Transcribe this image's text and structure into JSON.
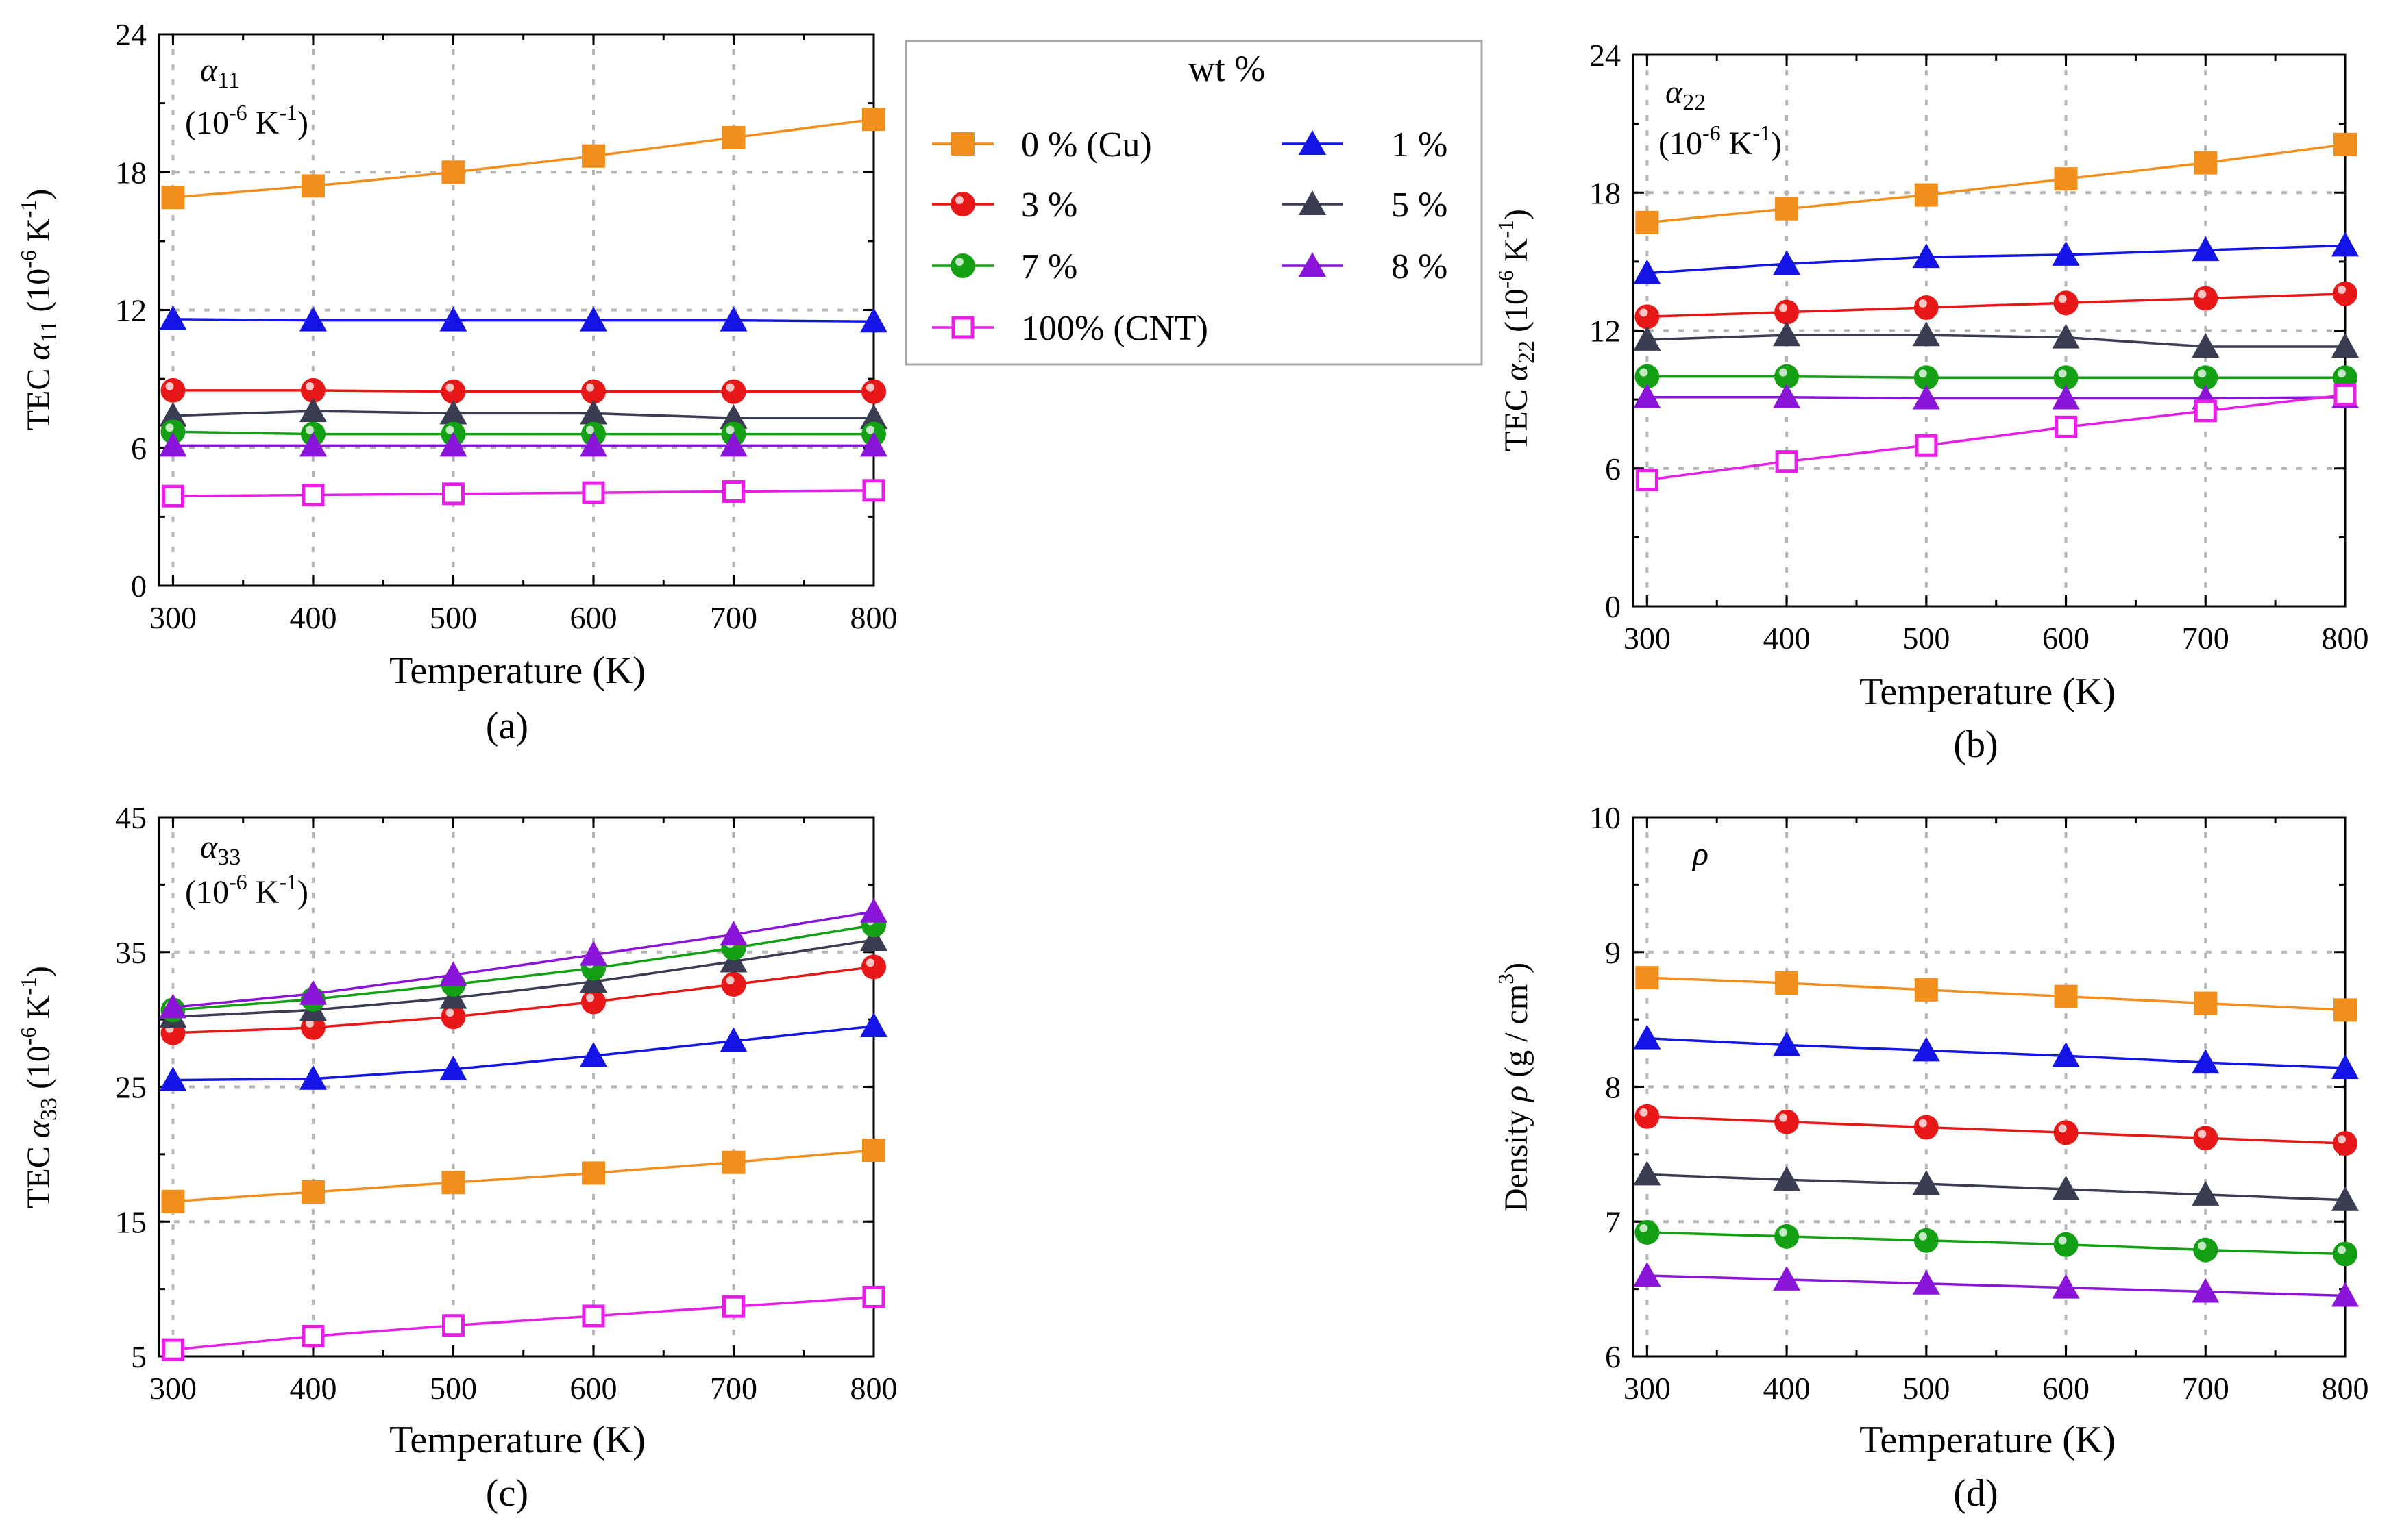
{
  "chart_data": [
    {
      "id": "a",
      "type": "line",
      "panel_label": "(a)",
      "annotation": {
        "symbol": "α",
        "sub": "11",
        "unit": "(10",
        "unit_exp": "-6",
        "unit_rest": " K",
        "unit_exp2": "-1",
        "unit_close": ")"
      },
      "xlabel": "Temperature (K)",
      "ylabel": {
        "prefix": "TEC ",
        "symbol": "α",
        "sub": "11",
        "unit": " (10",
        "exp": "-6",
        "unit2": " K",
        "exp2": "-1",
        "close": ")"
      },
      "xlim": [
        290,
        800
      ],
      "ylim": [
        0,
        24
      ],
      "xticks": [
        300,
        400,
        500,
        600,
        700,
        800
      ],
      "yticks": [
        0,
        6,
        12,
        18,
        24
      ],
      "grid": true,
      "x": [
        300,
        400,
        500,
        600,
        700,
        800
      ],
      "series": [
        {
          "name": "0 % (Cu)",
          "marker": "square",
          "color": "#f28e1c",
          "values": [
            16.9,
            17.4,
            18.0,
            18.7,
            19.5,
            20.3
          ]
        },
        {
          "name": "1 %",
          "marker": "triangle",
          "color": "#1414e6",
          "values": [
            11.6,
            11.55,
            11.55,
            11.55,
            11.55,
            11.5
          ]
        },
        {
          "name": "3 %",
          "marker": "circle",
          "color": "#e81818",
          "values": [
            8.5,
            8.5,
            8.45,
            8.45,
            8.45,
            8.45
          ]
        },
        {
          "name": "5 %",
          "marker": "triangle",
          "color": "#3a3c52",
          "values": [
            7.4,
            7.6,
            7.5,
            7.5,
            7.3,
            7.3
          ]
        },
        {
          "name": "7 %",
          "marker": "circle",
          "color": "#14a014",
          "values": [
            6.7,
            6.6,
            6.6,
            6.6,
            6.6,
            6.6
          ]
        },
        {
          "name": "8 %",
          "marker": "triangle",
          "color": "#8a14d8",
          "values": [
            6.1,
            6.1,
            6.1,
            6.1,
            6.1,
            6.1
          ]
        },
        {
          "name": "100% (CNT)",
          "marker": "square-open",
          "color": "#e61ee6",
          "values": [
            3.9,
            3.95,
            4.0,
            4.05,
            4.1,
            4.15
          ]
        }
      ]
    },
    {
      "id": "b",
      "type": "line",
      "panel_label": "(b)",
      "annotation": {
        "symbol": "α",
        "sub": "22",
        "unit": "(10",
        "unit_exp": "-6",
        "unit_rest": " K",
        "unit_exp2": "-1",
        "unit_close": ")"
      },
      "xlabel": "Temperature (K)",
      "ylabel": {
        "prefix": "TEC ",
        "symbol": "α",
        "sub": "22",
        "unit": " (10",
        "exp": "-6",
        "unit2": " K",
        "exp2": "-1",
        "close": ")"
      },
      "xlim": [
        290,
        800
      ],
      "ylim": [
        0,
        24
      ],
      "xticks": [
        300,
        400,
        500,
        600,
        700,
        800
      ],
      "yticks": [
        0,
        6,
        12,
        18,
        24
      ],
      "grid": true,
      "x": [
        300,
        400,
        500,
        600,
        700,
        800
      ],
      "series": [
        {
          "name": "0 % (Cu)",
          "marker": "square",
          "color": "#f28e1c",
          "values": [
            16.7,
            17.3,
            17.9,
            18.6,
            19.3,
            20.1
          ]
        },
        {
          "name": "1 %",
          "marker": "triangle",
          "color": "#1414e6",
          "values": [
            14.5,
            14.9,
            15.2,
            15.3,
            15.5,
            15.7
          ]
        },
        {
          "name": "3 %",
          "marker": "circle",
          "color": "#e81818",
          "values": [
            12.6,
            12.8,
            13.0,
            13.2,
            13.4,
            13.6
          ]
        },
        {
          "name": "5 %",
          "marker": "triangle",
          "color": "#3a3c52",
          "values": [
            11.6,
            11.8,
            11.8,
            11.7,
            11.3,
            11.3
          ]
        },
        {
          "name": "7 %",
          "marker": "circle",
          "color": "#14a014",
          "values": [
            10.0,
            10.0,
            9.95,
            9.95,
            9.95,
            9.95
          ]
        },
        {
          "name": "8 %",
          "marker": "triangle",
          "color": "#8a14d8",
          "values": [
            9.1,
            9.1,
            9.05,
            9.05,
            9.05,
            9.1
          ]
        },
        {
          "name": "100% (CNT)",
          "marker": "square-open",
          "color": "#e61ee6",
          "values": [
            5.5,
            6.3,
            7.0,
            7.8,
            8.5,
            9.2
          ]
        }
      ]
    },
    {
      "id": "c",
      "type": "line",
      "panel_label": "(c)",
      "annotation": {
        "symbol": "α",
        "sub": "33",
        "unit": "(10",
        "unit_exp": "-6",
        "unit_rest": " K",
        "unit_exp2": "-1",
        "unit_close": ")"
      },
      "xlabel": "Temperature (K)",
      "ylabel": {
        "prefix": "TEC ",
        "symbol": "α",
        "sub": "33",
        "unit": " (10",
        "exp": "-6",
        "unit2": " K",
        "exp2": "-1",
        "close": ")"
      },
      "xlim": [
        290,
        800
      ],
      "ylim": [
        5,
        45
      ],
      "xticks": [
        300,
        400,
        500,
        600,
        700,
        800
      ],
      "yticks": [
        5,
        15,
        25,
        35,
        45
      ],
      "grid": true,
      "x": [
        300,
        400,
        500,
        600,
        700,
        800
      ],
      "series": [
        {
          "name": "0 % (Cu)",
          "marker": "square",
          "color": "#f28e1c",
          "values": [
            16.5,
            17.2,
            17.9,
            18.6,
            19.4,
            20.3
          ]
        },
        {
          "name": "1 %",
          "marker": "triangle",
          "color": "#1414e6",
          "values": [
            25.5,
            25.6,
            26.3,
            27.3,
            28.4,
            29.5
          ]
        },
        {
          "name": "3 %",
          "marker": "circle",
          "color": "#e81818",
          "values": [
            29.0,
            29.4,
            30.2,
            31.3,
            32.6,
            33.9
          ]
        },
        {
          "name": "5 %",
          "marker": "triangle",
          "color": "#3a3c52",
          "values": [
            30.2,
            30.7,
            31.6,
            32.8,
            34.3,
            35.9
          ]
        },
        {
          "name": "7 %",
          "marker": "circle",
          "color": "#14a014",
          "values": [
            30.7,
            31.5,
            32.6,
            33.8,
            35.3,
            37.0
          ]
        },
        {
          "name": "8 %",
          "marker": "triangle",
          "color": "#8a14d8",
          "values": [
            30.9,
            31.9,
            33.3,
            34.8,
            36.3,
            38.0
          ]
        },
        {
          "name": "100% (CNT)",
          "marker": "square-open",
          "color": "#e61ee6",
          "values": [
            5.5,
            6.5,
            7.3,
            8.0,
            8.7,
            9.4
          ]
        }
      ]
    },
    {
      "id": "d",
      "type": "line",
      "panel_label": "(d)",
      "annotation": {
        "symbol": "ρ"
      },
      "xlabel": "Temperature (K)",
      "ylabel": {
        "prefix": "Density ",
        "symbol": "ρ",
        "unit": " (g / cm",
        "exp": "3",
        "close": ")"
      },
      "xlim": [
        290,
        800
      ],
      "ylim": [
        6,
        10
      ],
      "xticks": [
        300,
        400,
        500,
        600,
        700,
        800
      ],
      "yticks": [
        6,
        7,
        8,
        9,
        10
      ],
      "grid": true,
      "x": [
        300,
        400,
        500,
        600,
        700,
        800
      ],
      "series": [
        {
          "name": "0 % (Cu)",
          "marker": "square",
          "color": "#f28e1c",
          "values": [
            8.81,
            8.77,
            8.72,
            8.67,
            8.62,
            8.57
          ]
        },
        {
          "name": "1 %",
          "marker": "triangle",
          "color": "#1414e6",
          "values": [
            8.36,
            8.31,
            8.27,
            8.23,
            8.18,
            8.14
          ]
        },
        {
          "name": "3 %",
          "marker": "circle",
          "color": "#e81818",
          "values": [
            7.78,
            7.74,
            7.7,
            7.66,
            7.62,
            7.58
          ]
        },
        {
          "name": "5 %",
          "marker": "triangle",
          "color": "#3a3c52",
          "values": [
            7.35,
            7.31,
            7.28,
            7.24,
            7.2,
            7.16
          ]
        },
        {
          "name": "7 %",
          "marker": "circle",
          "color": "#14a014",
          "values": [
            6.92,
            6.89,
            6.86,
            6.83,
            6.79,
            6.76
          ]
        },
        {
          "name": "8 %",
          "marker": "triangle",
          "color": "#8a14d8",
          "values": [
            6.6,
            6.57,
            6.54,
            6.51,
            6.48,
            6.45
          ]
        }
      ]
    }
  ],
  "legend": {
    "title": "wt %",
    "entries": [
      {
        "label": "0 % (Cu)",
        "marker": "square",
        "color": "#f28e1c"
      },
      {
        "label": "1 %",
        "marker": "triangle",
        "color": "#1414e6"
      },
      {
        "label": "3 %",
        "marker": "circle",
        "color": "#e81818"
      },
      {
        "label": "5 %",
        "marker": "triangle",
        "color": "#3a3c52"
      },
      {
        "label": "7 %",
        "marker": "circle",
        "color": "#14a014"
      },
      {
        "label": "8 %",
        "marker": "triangle",
        "color": "#8a14d8"
      },
      {
        "label": "100% (CNT)",
        "marker": "square-open",
        "color": "#e61ee6"
      }
    ]
  }
}
